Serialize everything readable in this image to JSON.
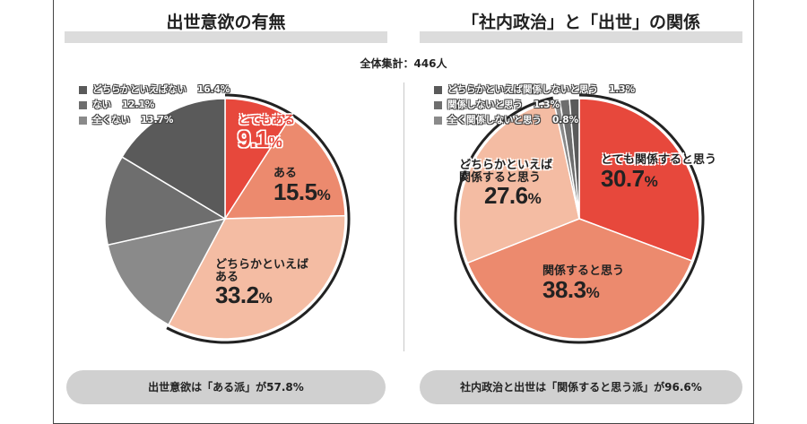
{
  "total_label": "全体集計：446人",
  "colors": {
    "very": "#e7483c",
    "yes": "#ec8a6e",
    "somewhat_yes": "#f4bca3",
    "dark1": "#5a5a5a",
    "dark2": "#6e6e6e",
    "dark3": "#8a8a8a"
  },
  "left": {
    "title": "出世意欲の有無",
    "summary": "出世意欲は「ある派」が57.8%",
    "legend": [
      {
        "label": "どちらかといえばない",
        "pct": "16.4%",
        "color": "#5a5a5a"
      },
      {
        "label": "ない",
        "pct": "12.1%",
        "color": "#6e6e6e"
      },
      {
        "label": "全くない",
        "pct": "13.7%",
        "color": "#8a8a8a"
      }
    ],
    "labels": {
      "very_name": "とてもある",
      "very_pct": "9.1",
      "yes_name": "ある",
      "yes_pct": "15.5",
      "somewhat_name1": "どちらかといえば",
      "somewhat_name2": "ある",
      "somewhat_pct": "33.2"
    }
  },
  "right": {
    "title": "「社内政治」と「出世」の関係",
    "summary": "社内政治と出世は「関係すると思う派」が96.6%",
    "legend": [
      {
        "label": "どちらかといえば関係しないと思う",
        "pct": "1.3%",
        "color": "#5a5a5a"
      },
      {
        "label": "関係しないと思う",
        "pct": "1.3%",
        "color": "#6e6e6e"
      },
      {
        "label": "全く関係しないと思う",
        "pct": "0.8%",
        "color": "#8a8a8a"
      }
    ],
    "labels": {
      "very_name": "とても関係すると思う",
      "very_pct": "30.7",
      "yes_name": "関係すると思う",
      "yes_pct": "38.3",
      "somewhat_name1": "どちらかといえば",
      "somewhat_name2": "関係すると思う",
      "somewhat_pct": "27.6"
    }
  },
  "chart_data": [
    {
      "type": "pie",
      "title": "出世意欲の有無",
      "slices": [
        {
          "label": "とてもある",
          "value": 9.1,
          "color": "#e7483c"
        },
        {
          "label": "ある",
          "value": 15.5,
          "color": "#ec8a6e"
        },
        {
          "label": "どちらかといえばある",
          "value": 33.2,
          "color": "#f4bca3"
        },
        {
          "label": "全くない",
          "value": 13.7,
          "color": "#8a8a8a"
        },
        {
          "label": "ない",
          "value": 12.1,
          "color": "#6e6e6e"
        },
        {
          "label": "どちらかといえばない",
          "value": 16.4,
          "color": "#5a5a5a"
        }
      ]
    },
    {
      "type": "pie",
      "title": "「社内政治」と「出世」の関係",
      "slices": [
        {
          "label": "とても関係すると思う",
          "value": 30.7,
          "color": "#e7483c"
        },
        {
          "label": "関係すると思う",
          "value": 38.3,
          "color": "#ec8a6e"
        },
        {
          "label": "どちらかといえば関係すると思う",
          "value": 27.6,
          "color": "#f4bca3"
        },
        {
          "label": "全く関係しないと思う",
          "value": 0.8,
          "color": "#8a8a8a"
        },
        {
          "label": "関係しないと思う",
          "value": 1.3,
          "color": "#6e6e6e"
        },
        {
          "label": "どちらかといえば関係しないと思う",
          "value": 1.3,
          "color": "#5a5a5a"
        }
      ]
    }
  ]
}
